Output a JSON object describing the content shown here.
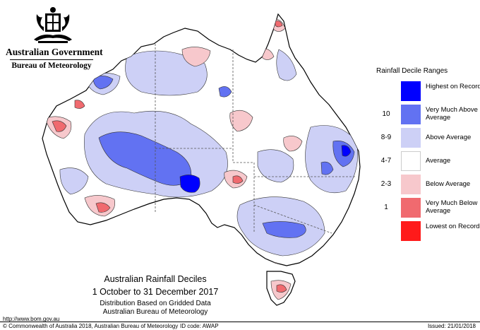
{
  "header": {
    "government": "Australian Government",
    "bureau": "Bureau of Meteorology"
  },
  "legend": {
    "title": "Rainfall Decile Ranges",
    "items": [
      {
        "range": "",
        "label": "Highest on Record",
        "color": "#0000ff"
      },
      {
        "range": "10",
        "label": "Very Much Above Average",
        "color": "#6272f2"
      },
      {
        "range": "8-9",
        "label": "Above Average",
        "color": "#cdd0f6"
      },
      {
        "range": "4-7",
        "label": "Average",
        "color": "#ffffff"
      },
      {
        "range": "2-3",
        "label": "Below Average",
        "color": "#f7c8cc"
      },
      {
        "range": "1",
        "label": "Very Much Below Average",
        "color": "#f06a6f"
      },
      {
        "range": "",
        "label": "Lowest on Record",
        "color": "#ff1a1a"
      }
    ]
  },
  "caption": {
    "title": "Australian Rainfall Deciles",
    "period": "1 October to 31 December 2017",
    "source": "Distribution Based on Gridded Data",
    "agency": "Australian Bureau of Meteorology"
  },
  "footer": {
    "url": "http://www.bom.gov.au",
    "copyright": "© Commonwealth of Australia 2018, Australian Bureau of Meteorology",
    "id_code": "ID code: AWAP",
    "issued": "Issued: 21/01/2018"
  }
}
